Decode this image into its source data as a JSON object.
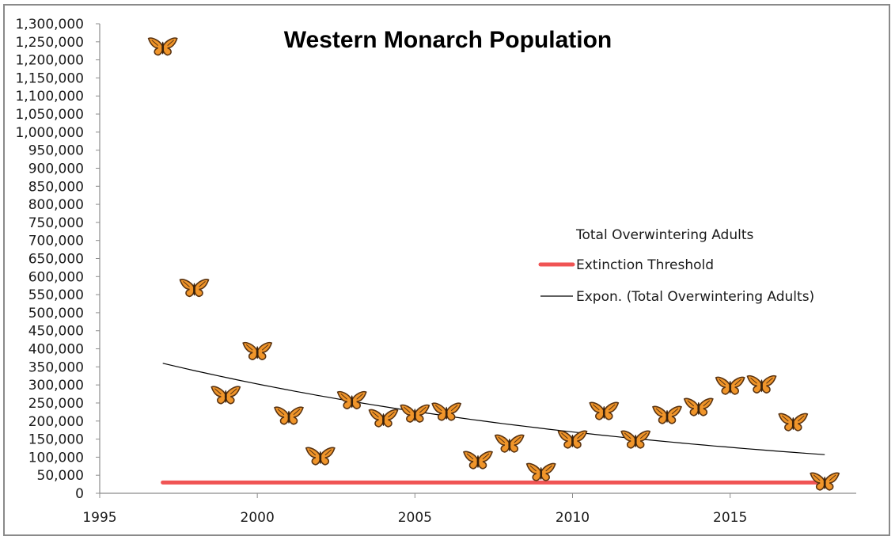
{
  "chart_data": {
    "type": "scatter",
    "title": "Western Monarch Population",
    "xlabel": "",
    "ylabel": "",
    "xlim": [
      1995,
      2019
    ],
    "ylim": [
      0,
      1300000
    ],
    "x_ticks": [
      "1995",
      "2000",
      "2005",
      "2010",
      "2015"
    ],
    "x_tick_values": [
      1995,
      2000,
      2005,
      2010,
      2015
    ],
    "y_ticks": [
      "0",
      "50,000",
      "100,000",
      "150,000",
      "200,000",
      "250,000",
      "300,000",
      "350,000",
      "400,000",
      "450,000",
      "500,000",
      "550,000",
      "600,000",
      "650,000",
      "700,000",
      "750,000",
      "800,000",
      "850,000",
      "900,000",
      "950,000",
      "1,000,000",
      "1,050,000",
      "1,100,000",
      "1,150,000",
      "1,200,000",
      "1,250,000",
      "1,300,000"
    ],
    "y_tick_values": [
      0,
      50000,
      100000,
      150000,
      200000,
      250000,
      300000,
      350000,
      400000,
      450000,
      500000,
      550000,
      600000,
      650000,
      700000,
      750000,
      800000,
      850000,
      900000,
      950000,
      1000000,
      1050000,
      1100000,
      1150000,
      1200000,
      1250000,
      1300000
    ],
    "grid": false,
    "legend_position": "right",
    "series": [
      {
        "name": "Total Overwintering Adults",
        "kind": "scatter-butterfly-marker",
        "x": [
          1997,
          1998,
          1999,
          2000,
          2001,
          2002,
          2003,
          2004,
          2005,
          2006,
          2007,
          2008,
          2009,
          2010,
          2011,
          2012,
          2013,
          2014,
          2015,
          2016,
          2017,
          2018
        ],
        "y": [
          1235000,
          567000,
          270000,
          392000,
          213000,
          101000,
          256000,
          206000,
          219000,
          224000,
          90000,
          136000,
          57000,
          147000,
          226000,
          147000,
          215000,
          237000,
          296000,
          300000,
          195000,
          31000
        ]
      },
      {
        "name": "Extinction Threshold",
        "kind": "line",
        "color": "#f05454",
        "x": [
          1997,
          2018
        ],
        "y": [
          30000,
          30000
        ]
      },
      {
        "name": "Expon. (Total Overwintering Adults)",
        "kind": "trendline-exponential",
        "color": "#000000",
        "x": [
          1997,
          2018
        ],
        "y": [
          360000,
          107000
        ]
      }
    ]
  },
  "colors": {
    "threshold": "#f05454",
    "trend": "#000000",
    "axis": "#8c8c8c",
    "butterfly_wing": "#f0952a",
    "butterfly_edge": "#5a3412"
  }
}
